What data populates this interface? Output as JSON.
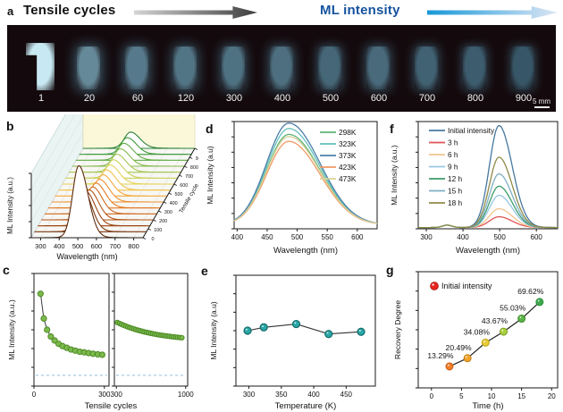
{
  "header": {
    "panel_label": "a",
    "left_title": "Tensile cycles",
    "right_title": "ML intensity",
    "right_title_color": "#15539e"
  },
  "photo": {
    "scale_bar_label": "5 mm",
    "samples": [
      {
        "label": "1",
        "brightness": 1.0
      },
      {
        "label": "20",
        "brightness": 0.58
      },
      {
        "label": "60",
        "brightness": 0.5
      },
      {
        "label": "120",
        "brightness": 0.48
      },
      {
        "label": "300",
        "brightness": 0.46
      },
      {
        "label": "400",
        "brightness": 0.45
      },
      {
        "label": "500",
        "brightness": 0.4
      },
      {
        "label": "600",
        "brightness": 0.42
      },
      {
        "label": "700",
        "brightness": 0.37
      },
      {
        "label": "800",
        "brightness": 0.34
      },
      {
        "label": "900",
        "brightness": 0.3
      }
    ]
  },
  "panels": {
    "b": {
      "label": "b"
    },
    "c": {
      "label": "c"
    },
    "d": {
      "label": "d"
    },
    "e": {
      "label": "e"
    },
    "f": {
      "label": "f"
    },
    "g": {
      "label": "g"
    }
  },
  "chart_data": [
    {
      "id": "b",
      "type": "line",
      "subtype": "3d-waterfall",
      "xlabel": "Wavelength (nm)",
      "x_range": [
        250,
        850
      ],
      "x_ticks": [
        300,
        400,
        500,
        600,
        700,
        800
      ],
      "zlabel": "ML Intensity (a.u.)",
      "depth_label": "Tensile cycle",
      "depth_ticks": [
        0,
        100,
        200,
        300,
        400,
        500,
        600,
        700,
        800,
        900,
        1000
      ],
      "peak_wavelength_nm": 505,
      "series": [
        {
          "cycle": 1,
          "rel_peak": 1.0,
          "color": "#5e2a0c"
        },
        {
          "cycle": 67,
          "rel_peak": 0.6,
          "color": "#7c370e"
        },
        {
          "cycle": 133,
          "rel_peak": 0.475,
          "color": "#9a4410"
        },
        {
          "cycle": 200,
          "rel_peak": 0.41,
          "color": "#b55314"
        },
        {
          "cycle": 267,
          "rel_peak": 0.37,
          "color": "#cf661c"
        },
        {
          "cycle": 333,
          "rel_peak": 0.34,
          "color": "#e37a24"
        },
        {
          "cycle": 400,
          "rel_peak": 0.31,
          "color": "#ef9030"
        },
        {
          "cycle": 467,
          "rel_peak": 0.29,
          "color": "#f4a93e"
        },
        {
          "cycle": 533,
          "rel_peak": 0.275,
          "color": "#f1c24c"
        },
        {
          "cycle": 600,
          "rel_peak": 0.26,
          "color": "#e4d355"
        },
        {
          "cycle": 667,
          "rel_peak": 0.25,
          "color": "#c9d158"
        },
        {
          "cycle": 733,
          "rel_peak": 0.244,
          "color": "#a8c653"
        },
        {
          "cycle": 800,
          "rel_peak": 0.236,
          "color": "#84b94b"
        },
        {
          "cycle": 867,
          "rel_peak": 0.23,
          "color": "#60ab43"
        },
        {
          "cycle": 933,
          "rel_peak": 0.225,
          "color": "#40993b"
        },
        {
          "cycle": 1000,
          "rel_peak": 0.22,
          "color": "#2a8033"
        }
      ],
      "wall_left_color": "#e9f4f3",
      "wall_back_color": "#fbf8da"
    },
    {
      "id": "c",
      "type": "scatter",
      "xlabel": "Tensile cycles",
      "ylabel": "ML Intensity (a.u.)",
      "marker_fill": "#7cb94d",
      "marker_stroke": "#4d8b26",
      "line_color": "#3a3a3a",
      "baseline_color": "#a5cce8",
      "baseline_y": 0.095,
      "subpanels": [
        {
          "x_range": [
            0,
            320
          ],
          "x_ticks": [
            0,
            300
          ],
          "x": [
            28,
            42,
            56,
            72,
            88,
            105,
            122,
            140,
            158,
            176,
            195,
            214,
            233,
            252,
            272,
            291
          ],
          "y": [
            0.82,
            0.6,
            0.5,
            0.44,
            0.405,
            0.375,
            0.355,
            0.34,
            0.325,
            0.315,
            0.305,
            0.3,
            0.293,
            0.287,
            0.282,
            0.278
          ]
        },
        {
          "x_range": [
            280,
            1020
          ],
          "x_ticks": [
            300,
            1000
          ],
          "x": [
            310,
            331,
            352,
            373,
            394,
            415,
            436,
            457,
            478,
            499,
            520,
            541,
            562,
            583,
            604,
            625,
            646,
            667,
            688,
            709,
            730,
            751,
            772,
            793,
            814,
            835,
            856,
            877,
            898,
            919,
            940,
            961
          ],
          "y": [
            0.565,
            0.556,
            0.548,
            0.54,
            0.533,
            0.526,
            0.519,
            0.513,
            0.507,
            0.501,
            0.496,
            0.491,
            0.486,
            0.481,
            0.477,
            0.473,
            0.469,
            0.465,
            0.462,
            0.458,
            0.455,
            0.452,
            0.449,
            0.447,
            0.444,
            0.442,
            0.439,
            0.437,
            0.435,
            0.433,
            0.431,
            0.429
          ]
        }
      ]
    },
    {
      "id": "d",
      "type": "line",
      "xlabel": "Wavelength (nm)",
      "ylabel": "ML Intensity (a.u)",
      "x_range": [
        395,
        633
      ],
      "x_ticks": [
        400,
        450,
        500,
        550,
        600
      ],
      "peak_wavelength_nm": 486,
      "legend_pos": "top-right",
      "series": [
        {
          "name": "298K",
          "color": "#5cb273",
          "rel_peak": 0.845
        },
        {
          "name": "323K",
          "color": "#64c0bd",
          "rel_peak": 0.9
        },
        {
          "name": "373K",
          "color": "#4d7fa9",
          "rel_peak": 0.95
        },
        {
          "name": "423K",
          "color": "#f09a66",
          "rel_peak": 0.78
        },
        {
          "name": "473K",
          "color": "#d8d29a",
          "rel_peak": 0.825
        }
      ]
    },
    {
      "id": "e",
      "type": "scatter",
      "xlabel": "Temperature (K)",
      "ylabel": "ML Intensity (a.u)",
      "x_range": [
        280,
        495
      ],
      "x_ticks": [
        300,
        350,
        400,
        450
      ],
      "marker_fill": "#2aa7a7",
      "marker_stroke": "#156b6b",
      "line_color": "#333333",
      "points": {
        "x": [
          298,
          323,
          373,
          423,
          473
        ],
        "y": [
          0.5,
          0.53,
          0.56,
          0.47,
          0.49
        ]
      }
    },
    {
      "id": "f",
      "type": "line",
      "xlabel": "Wavelength (nm)",
      "ylabel": "ML Intensity (a.u.)",
      "x_range": [
        278,
        658
      ],
      "x_ticks": [
        300,
        400,
        500,
        600
      ],
      "peak_wavelength_nm": 498,
      "legend_pos": "top-left",
      "series": [
        {
          "name": "Initial intensity",
          "color": "#46789f",
          "rel_peak": 0.95
        },
        {
          "name": "3 h",
          "color": "#df5353",
          "rel_peak": 0.1
        },
        {
          "name": "6 h",
          "color": "#f3c48e",
          "rel_peak": 0.175
        },
        {
          "name": "9 h",
          "color": "#96c6e2",
          "rel_peak": 0.3
        },
        {
          "name": "12 h",
          "color": "#3d9b6b",
          "rel_peak": 0.385
        },
        {
          "name": "15 h",
          "color": "#7fafc2",
          "rel_peak": 0.5
        },
        {
          "name": "18 h",
          "color": "#8f8a48",
          "rel_peak": 0.655
        }
      ]
    },
    {
      "id": "g",
      "type": "scatter",
      "xlabel": "Time (h)",
      "ylabel": "Recovery Degree",
      "x_range": [
        -2.2,
        21
      ],
      "x_ticks": [
        0,
        5,
        10,
        15,
        20
      ],
      "line_color": "#222222",
      "legend": {
        "label": "Initial intensity",
        "marker_color": "#e8251d"
      },
      "points": {
        "x": [
          3,
          6,
          9,
          12,
          15,
          18
        ],
        "y_pct": [
          13.29,
          20.49,
          34.08,
          43.67,
          55.03,
          69.62
        ],
        "labels": [
          "13.29%",
          "20.49%",
          "34.08%",
          "43.67%",
          "55.03%",
          "69.62%"
        ],
        "fills": [
          "#f07f28",
          "#f2a32b",
          "#e8cc3a",
          "#a9cf3d",
          "#59b347",
          "#3da94f"
        ],
        "strokes": [
          "#c65a10",
          "#c07d10",
          "#b8a410",
          "#7a9c20",
          "#3f8f2a",
          "#2f8f3a"
        ]
      }
    }
  ]
}
